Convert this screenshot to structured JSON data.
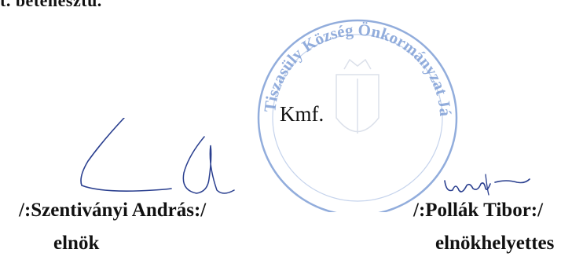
{
  "document": {
    "top_fragment": "t. betenesztu.",
    "closing": "Kmf.",
    "stamp": {
      "text": "Tiszasüly Község Önkormányzat Jász-Nagykun-Szolnok Megye",
      "color": "#7f9fd6"
    },
    "signatories": [
      {
        "name": "/:Szentiványi András:/",
        "title": "elnök"
      },
      {
        "name": "/:Pollák Tibor:/",
        "title": "elnökhelyettes"
      }
    ],
    "signature_ink_color": "#2a3f8f",
    "stamp_ink_color": "#7f9fd6"
  }
}
